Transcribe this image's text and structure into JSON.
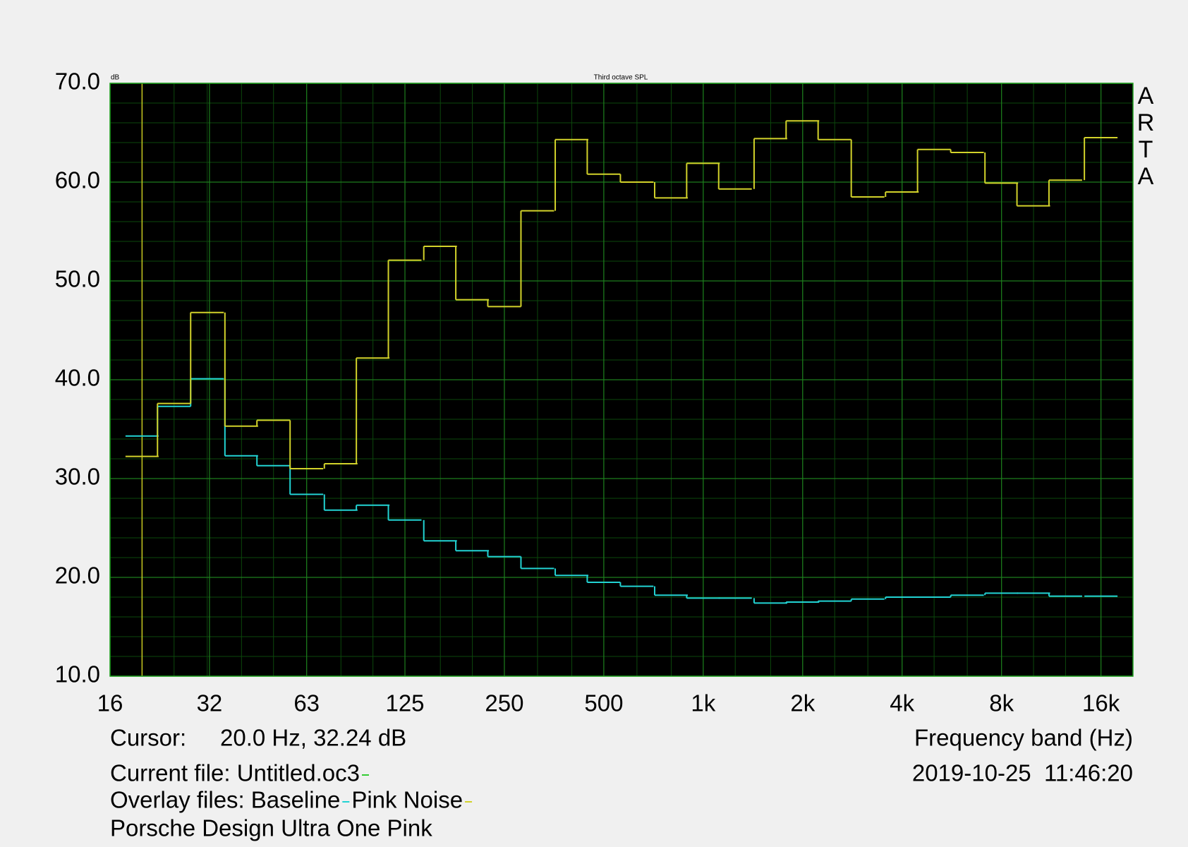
{
  "chart_data": {
    "type": "step",
    "title": "Third octave SPL",
    "y_unit": "dB",
    "x_label": "Frequency band (Hz)",
    "brand_letters": [
      "A",
      "R",
      "T",
      "A"
    ],
    "log_x": true,
    "grid": true,
    "x": [
      20,
      25,
      31.5,
      40,
      50,
      63,
      80,
      100,
      125,
      160,
      200,
      250,
      315,
      400,
      500,
      630,
      800,
      1000,
      1250,
      1600,
      2000,
      2500,
      3150,
      4000,
      5000,
      6300,
      8000,
      10000,
      12500,
      16000
    ],
    "series": [
      {
        "name": "Baseline",
        "color": "#22d3d3",
        "values": [
          34.3,
          37.3,
          40.1,
          32.3,
          31.3,
          28.4,
          26.8,
          27.3,
          25.8,
          23.7,
          22.7,
          22.1,
          20.9,
          20.2,
          19.5,
          19.1,
          18.2,
          17.9,
          17.9,
          17.4,
          17.5,
          17.6,
          17.8,
          18.0,
          18.0,
          18.2,
          18.4,
          18.4,
          18.1,
          18.1
        ]
      },
      {
        "name": "Pink Noise",
        "color": "#d2d22a",
        "values": [
          32.24,
          37.6,
          46.8,
          35.3,
          35.9,
          31.0,
          31.5,
          42.2,
          52.1,
          53.5,
          48.1,
          47.4,
          57.1,
          64.3,
          60.8,
          60.0,
          58.4,
          61.9,
          59.3,
          64.4,
          66.2,
          64.3,
          58.5,
          59.0,
          63.3,
          63.0,
          59.9,
          57.6,
          60.2,
          64.5
        ]
      }
    ],
    "xlim": [
      16,
      20000
    ],
    "xticks": [
      16,
      32,
      63,
      125,
      250,
      500,
      {
        "value": 1000,
        "label": "1k"
      },
      {
        "value": 2000,
        "label": "2k"
      },
      {
        "value": 4000,
        "label": "4k"
      },
      {
        "value": 8000,
        "label": "8k"
      },
      {
        "value": 16000,
        "label": "16k"
      }
    ],
    "ylim": [
      10,
      70
    ],
    "yticks": [
      {
        "value": 10,
        "label": "10.0"
      },
      {
        "value": 20,
        "label": "20.0"
      },
      {
        "value": 30,
        "label": "30.0"
      },
      {
        "value": 40,
        "label": "40.0"
      },
      {
        "value": 50,
        "label": "50.0"
      },
      {
        "value": 60,
        "label": "60.0"
      },
      {
        "value": 70,
        "label": "70.0"
      }
    ],
    "minor_yticks": [
      12,
      14,
      16,
      18,
      22,
      24,
      26,
      28,
      32,
      34,
      36,
      38,
      42,
      44,
      46,
      48,
      52,
      54,
      56,
      58,
      62,
      64,
      66,
      68
    ],
    "cursor": {
      "label": "Cursor:",
      "text": "20.0 Hz, 32.24 dB",
      "x": 20,
      "color": "#c8c820"
    },
    "current_file": {
      "label": "Current file: Untitled.oc3",
      "color": "#33cc33"
    },
    "overlay_label": "Overlay files:",
    "timestamp": "2019-10-25  11:46:20",
    "description": "Porsche Design Ultra One Pink"
  }
}
